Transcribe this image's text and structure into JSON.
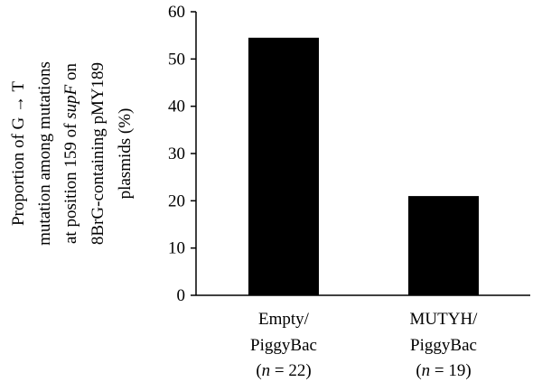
{
  "chart_data": {
    "type": "bar",
    "categories": [
      "Empty/ PiggyBac (n = 22)",
      "MUTYH/ PiggyBac (n = 19)"
    ],
    "category_lines": [
      [
        [
          {
            "t": "Empty/",
            "i": false
          }
        ],
        [
          {
            "t": "PiggyBac",
            "i": false
          }
        ],
        [
          {
            "t": "(",
            "i": false
          },
          {
            "t": "n",
            "i": true
          },
          {
            "t": " = 22)",
            "i": false
          }
        ]
      ],
      [
        [
          {
            "t": "MUTYH/",
            "i": false
          }
        ],
        [
          {
            "t": "PiggyBac",
            "i": false
          }
        ],
        [
          {
            "t": "(",
            "i": false
          },
          {
            "t": "n",
            "i": true
          },
          {
            "t": " = 19)",
            "i": false
          }
        ]
      ]
    ],
    "values": [
      54.5,
      21
    ],
    "ylim": [
      0,
      60
    ],
    "yticks": [
      0,
      10,
      20,
      30,
      40,
      50,
      60
    ],
    "xlabel": "",
    "ylabel": "Proportion of G → T mutation among mutations at position 159 of supF on 8BrG-containing pMY189 plasmids (%)",
    "ylabel_lines": [
      [
        {
          "t": "Proportion of G → T",
          "i": false
        }
      ],
      [
        {
          "t": "mutation among mutations",
          "i": false
        }
      ],
      [
        {
          "t": "at position 159 of ",
          "i": false
        },
        {
          "t": "supF",
          "i": true
        },
        {
          "t": " on",
          "i": false
        }
      ],
      [
        {
          "t": "8BrG-containing pMY189",
          "i": false
        }
      ],
      [
        {
          "t": "plasmids (%)",
          "i": false
        }
      ]
    ],
    "bar_color": "#000000",
    "grid": false
  }
}
